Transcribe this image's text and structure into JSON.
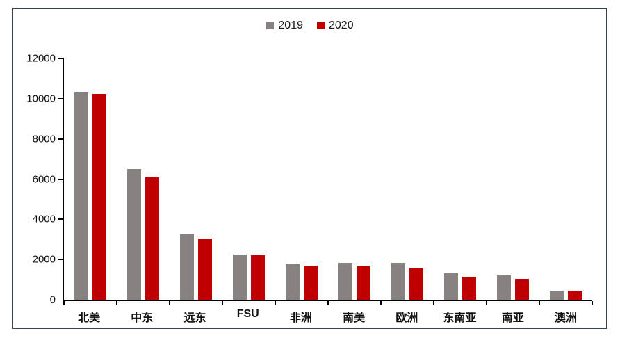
{
  "frame": {
    "border_color": "#3b4148"
  },
  "axis": {
    "color": "#000000"
  },
  "chart_data": {
    "type": "bar",
    "title": "",
    "xlabel": "",
    "ylabel": "",
    "categories": [
      "北美",
      "中东",
      "远东",
      "FSU",
      "非洲",
      "南美",
      "欧洲",
      "东南亚",
      "南亚",
      "澳洲"
    ],
    "series": [
      {
        "name": "2019",
        "color": "#87827f",
        "values": [
          10300,
          6500,
          3300,
          2250,
          1800,
          1850,
          1850,
          1300,
          1250,
          400
        ]
      },
      {
        "name": "2020",
        "color": "#c00000",
        "values": [
          10250,
          6100,
          3050,
          2200,
          1700,
          1700,
          1600,
          1150,
          1050,
          450
        ]
      }
    ],
    "ylim": [
      0,
      12000
    ],
    "yticks": [
      0,
      2000,
      4000,
      6000,
      8000,
      10000,
      12000
    ],
    "legend_position": "top-center",
    "grid": false
  }
}
